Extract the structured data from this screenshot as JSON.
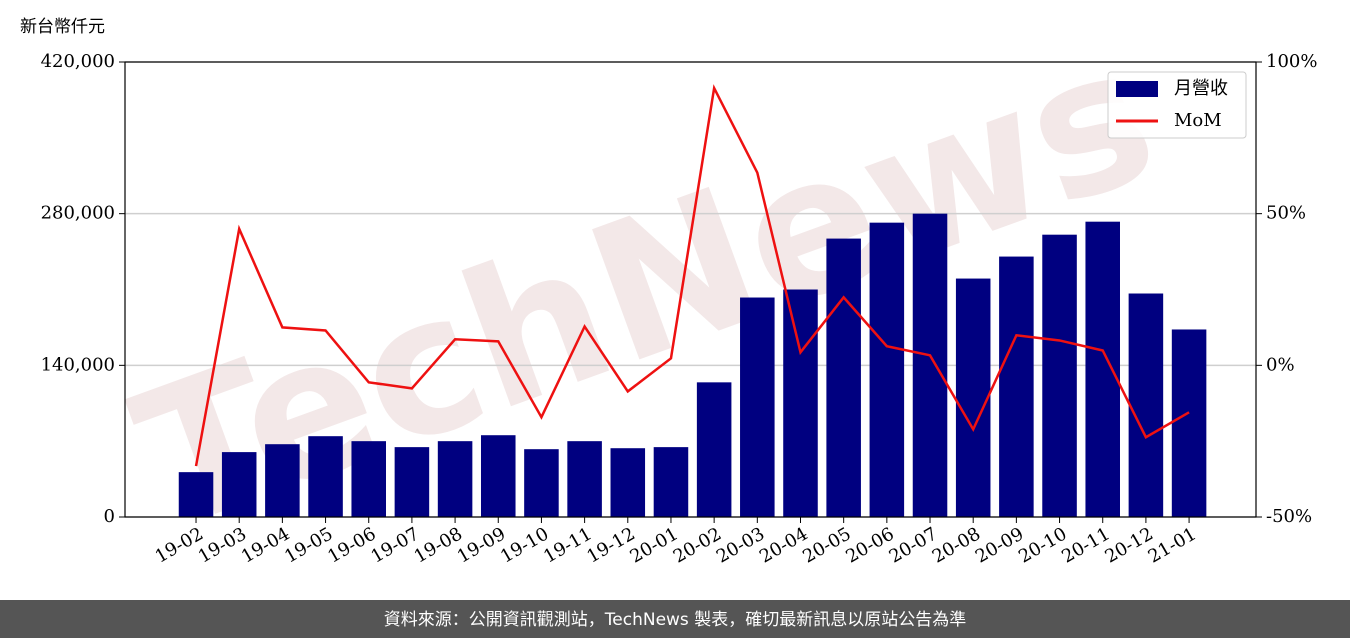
{
  "chart_data": {
    "type": "bar",
    "y_axis_label": "新台幣仟元",
    "categories": [
      "19-02",
      "19-03",
      "19-04",
      "19-05",
      "19-06",
      "19-07",
      "19-08",
      "19-09",
      "19-10",
      "19-11",
      "19-12",
      "20-01",
      "20-02",
      "20-03",
      "20-04",
      "20-05",
      "20-06",
      "20-07",
      "20-08",
      "20-09",
      "20-10",
      "20-11",
      "20-12",
      "21-01"
    ],
    "series": [
      {
        "name": "月營收",
        "type": "bar",
        "color": "#000080",
        "values": [
          41400,
          59900,
          67200,
          74600,
          70000,
          64500,
          70000,
          75500,
          62600,
          70000,
          63500,
          64500,
          124300,
          202600,
          210000,
          257000,
          271700,
          280000,
          220100,
          240400,
          260600,
          272600,
          206300,
          173100
        ]
      },
      {
        "name": "MoM",
        "type": "line",
        "axis": "y2",
        "color": "#ee1111",
        "values": [
          -33.2,
          45,
          12.5,
          11.5,
          -5.6,
          -7.6,
          8.6,
          7.9,
          -17.1,
          12.8,
          -8.6,
          2.3,
          91.4,
          63.5,
          4.3,
          22.4,
          6.3,
          3.3,
          -21.1,
          9.9,
          8.2,
          4.9,
          -23.7,
          -15.5
        ]
      }
    ],
    "ylim": [
      0,
      420000
    ],
    "yticks": [
      0,
      {
        "value": 140000,
        "label": "140,000"
      },
      {
        "value": 280000,
        "label": "280,000"
      },
      {
        "value": 420000,
        "label": "420,000"
      }
    ],
    "y2lim": [
      -50,
      100
    ],
    "y2ticks": [
      {
        "value": -50,
        "label": "-50%"
      },
      {
        "value": 0,
        "label": "0%"
      },
      {
        "value": 50,
        "label": "50%"
      },
      {
        "value": 100,
        "label": "100%"
      }
    ],
    "grid": true,
    "legend": "upper right",
    "watermark": "TechNews",
    "footer": "資料來源：公開資訊觀測站，TechNews 製表，確切最新訊息以原站公告為準"
  }
}
